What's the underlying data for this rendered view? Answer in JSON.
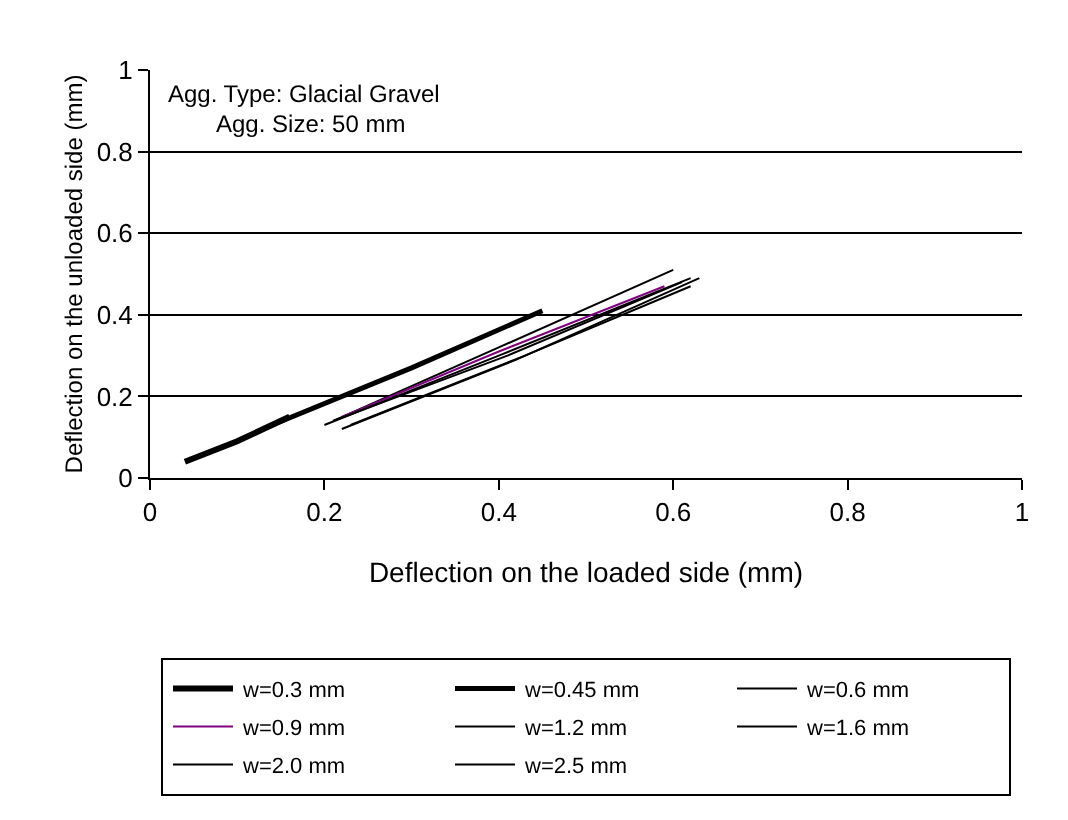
{
  "chart_data": {
    "type": "line",
    "xlabel": "Deflection on the loaded side (mm)",
    "ylabel": "Deflection on the unloaded side (mm)",
    "annotations": [
      "Agg. Type: Glacial Gravel",
      "Agg. Size: 50 mm"
    ],
    "xlim": [
      0,
      1
    ],
    "xticks": [
      0,
      0.2,
      0.4,
      0.6,
      0.8,
      1
    ],
    "ylim": [
      0,
      1
    ],
    "yticks": [
      0,
      0.2,
      0.4,
      0.6,
      0.8,
      1
    ],
    "grid": "y",
    "legend": "bottom",
    "marker": "none",
    "line_style": "solid",
    "series": [
      {
        "name": "w=0.3 mm",
        "color": "#000000",
        "x": [
          0.04,
          0.1,
          0.16
        ],
        "values": [
          0.04,
          0.09,
          0.15
        ]
      },
      {
        "name": "w=0.45 mm",
        "color": "#000000",
        "x": [
          0.14,
          0.3,
          0.45
        ],
        "values": [
          0.13,
          0.27,
          0.41
        ]
      },
      {
        "name": "w=0.6 mm",
        "color": "#000000",
        "x": [
          0.21,
          0.4,
          0.6
        ],
        "values": [
          0.14,
          0.32,
          0.51
        ]
      },
      {
        "name": "w=0.9 mm",
        "color": "#800080",
        "x": [
          0.22,
          0.4,
          0.59
        ],
        "values": [
          0.15,
          0.31,
          0.47
        ]
      },
      {
        "name": "w=1.2 mm",
        "color": "#000000",
        "x": [
          0.2,
          0.4,
          0.62
        ],
        "values": [
          0.13,
          0.3,
          0.49
        ]
      },
      {
        "name": "w=1.6 mm",
        "color": "#000000",
        "x": [
          0.22,
          0.42,
          0.63
        ],
        "values": [
          0.12,
          0.29,
          0.49
        ]
      },
      {
        "name": "w=2.0 mm",
        "color": "#000000",
        "x": [
          0.21,
          0.41,
          0.61
        ],
        "values": [
          0.14,
          0.3,
          0.48
        ]
      },
      {
        "name": "w=2.5 mm",
        "color": "#000000",
        "x": [
          0.23,
          0.43,
          0.62
        ],
        "values": [
          0.13,
          0.3,
          0.47
        ]
      }
    ]
  }
}
